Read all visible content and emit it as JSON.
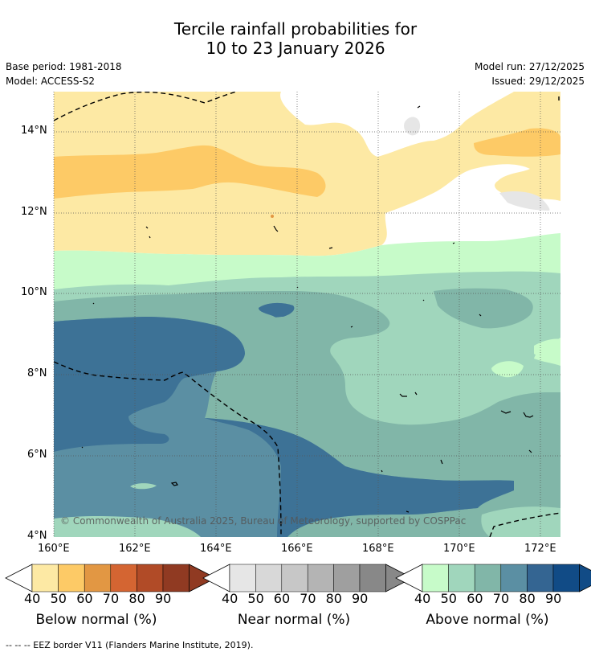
{
  "title": {
    "line1": "Tercile rainfall probabilities for",
    "line2": "10 to 23 January 2026"
  },
  "meta": {
    "base_period": "Base period: 1981-2018",
    "model": "Model: ACCESS-S2",
    "model_run": "Model run: 27/12/2025",
    "issued": "Issued: 29/12/2025"
  },
  "map": {
    "lat_labels": [
      "14°N",
      "12°N",
      "10°N",
      "8°N",
      "6°N",
      "4°N"
    ],
    "lon_labels": [
      "160°E",
      "162°E",
      "164°E",
      "166°E",
      "168°E",
      "170°E",
      "172°E"
    ],
    "copyright": "© Commonwealth of Australia 2025, Bureau of Meteorology, supported by COSPPac"
  },
  "colorbars": [
    {
      "caption": "Below normal (%)",
      "ticks": [
        "40",
        "50",
        "60",
        "70",
        "80",
        "90"
      ],
      "colors": [
        "#fde9a4",
        "#fdca66",
        "#e29743",
        "#d46532",
        "#b14b27",
        "#903a22"
      ]
    },
    {
      "caption": "Near normal (%)",
      "ticks": [
        "40",
        "50",
        "60",
        "70",
        "80",
        "90"
      ],
      "colors": [
        "#e6e6e6",
        "#d8d8d8",
        "#c7c7c7",
        "#b4b4b4",
        "#9f9f9f",
        "#888888"
      ]
    },
    {
      "caption": "Above normal (%)",
      "ticks": [
        "40",
        "50",
        "60",
        "70",
        "80",
        "90"
      ],
      "colors": [
        "#c7fbc9",
        "#a0d6bc",
        "#81b6a8",
        "#5b8fa3",
        "#346592",
        "#114b86"
      ]
    }
  ],
  "footnote": "-- -- -- EEZ border V11 (Flanders Marine Institute, 2019)."
}
